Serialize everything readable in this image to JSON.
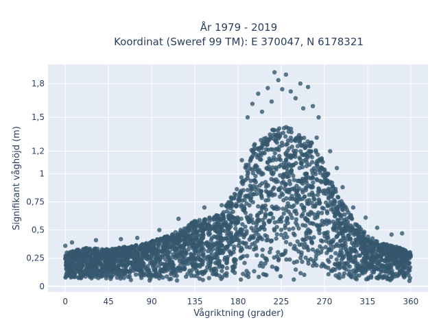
{
  "title_line1": "År 1979 - 2019",
  "title_line2": "Koordinat (Sweref 99 TM): E 370047, N 6178321",
  "chart_data": {
    "type": "scatter",
    "title": "År 1979 - 2019 Koordinat (Sweref 99 TM): E 370047, N 6178321",
    "xlabel": "Vågriktning (grader)",
    "ylabel": "Signifikant våghöjd (m)",
    "xlim": [
      -18,
      378
    ],
    "ylim": [
      -0.05,
      1.97
    ],
    "x_ticks": [
      0,
      45,
      90,
      135,
      180,
      225,
      270,
      315,
      360
    ],
    "x_tick_labels": [
      "0",
      "45",
      "90",
      "135",
      "180",
      "225",
      "270",
      "315",
      "360"
    ],
    "y_ticks": [
      0,
      0.25,
      0.5,
      0.75,
      1,
      1.2,
      1.5,
      1.8
    ],
    "y_tick_labels": [
      "0",
      "0,25",
      "0,5",
      "0,75",
      "1",
      "1,2",
      "1,5",
      "1,8"
    ],
    "grid": true,
    "marker_color": "#34586e",
    "upper_envelope": {
      "direction": [
        0,
        20,
        45,
        70,
        90,
        110,
        135,
        160,
        180,
        195,
        210,
        225,
        240,
        255,
        270,
        285,
        300,
        315,
        330,
        345,
        360
      ],
      "height": [
        0.3,
        0.34,
        0.33,
        0.36,
        0.4,
        0.46,
        0.58,
        0.64,
        0.88,
        1.25,
        1.35,
        1.45,
        1.38,
        1.3,
        1.1,
        0.8,
        0.6,
        0.45,
        0.38,
        0.36,
        0.3
      ]
    },
    "outliers": [
      {
        "x": 218,
        "y": 1.9
      },
      {
        "x": 230,
        "y": 1.88
      },
      {
        "x": 222,
        "y": 1.83
      },
      {
        "x": 245,
        "y": 1.8
      },
      {
        "x": 253,
        "y": 1.77
      },
      {
        "x": 211,
        "y": 1.76
      },
      {
        "x": 226,
        "y": 1.75
      },
      {
        "x": 235,
        "y": 1.73
      },
      {
        "x": 201,
        "y": 1.71
      },
      {
        "x": 240,
        "y": 1.67
      },
      {
        "x": 215,
        "y": 1.64
      },
      {
        "x": 195,
        "y": 1.62
      },
      {
        "x": 258,
        "y": 1.6
      },
      {
        "x": 248,
        "y": 1.58
      },
      {
        "x": 205,
        "y": 1.55
      },
      {
        "x": 264,
        "y": 1.5
      },
      {
        "x": 190,
        "y": 1.5
      },
      {
        "x": 262,
        "y": 1.32
      },
      {
        "x": 276,
        "y": 1.2
      },
      {
        "x": 283,
        "y": 1.05
      },
      {
        "x": 289,
        "y": 0.88
      },
      {
        "x": 300,
        "y": 0.7
      },
      {
        "x": 313,
        "y": 0.61
      },
      {
        "x": 325,
        "y": 0.52
      },
      {
        "x": 340,
        "y": 0.46
      },
      {
        "x": 351,
        "y": 0.47
      },
      {
        "x": 145,
        "y": 0.7
      },
      {
        "x": 163,
        "y": 0.72
      },
      {
        "x": 118,
        "y": 0.6
      },
      {
        "x": 98,
        "y": 0.5
      },
      {
        "x": 75,
        "y": 0.43
      },
      {
        "x": 58,
        "y": 0.42
      },
      {
        "x": 32,
        "y": 0.41
      },
      {
        "x": 7,
        "y": 0.39
      },
      {
        "x": 0,
        "y": 0.36
      },
      {
        "x": 184,
        "y": 1.12
      }
    ]
  }
}
